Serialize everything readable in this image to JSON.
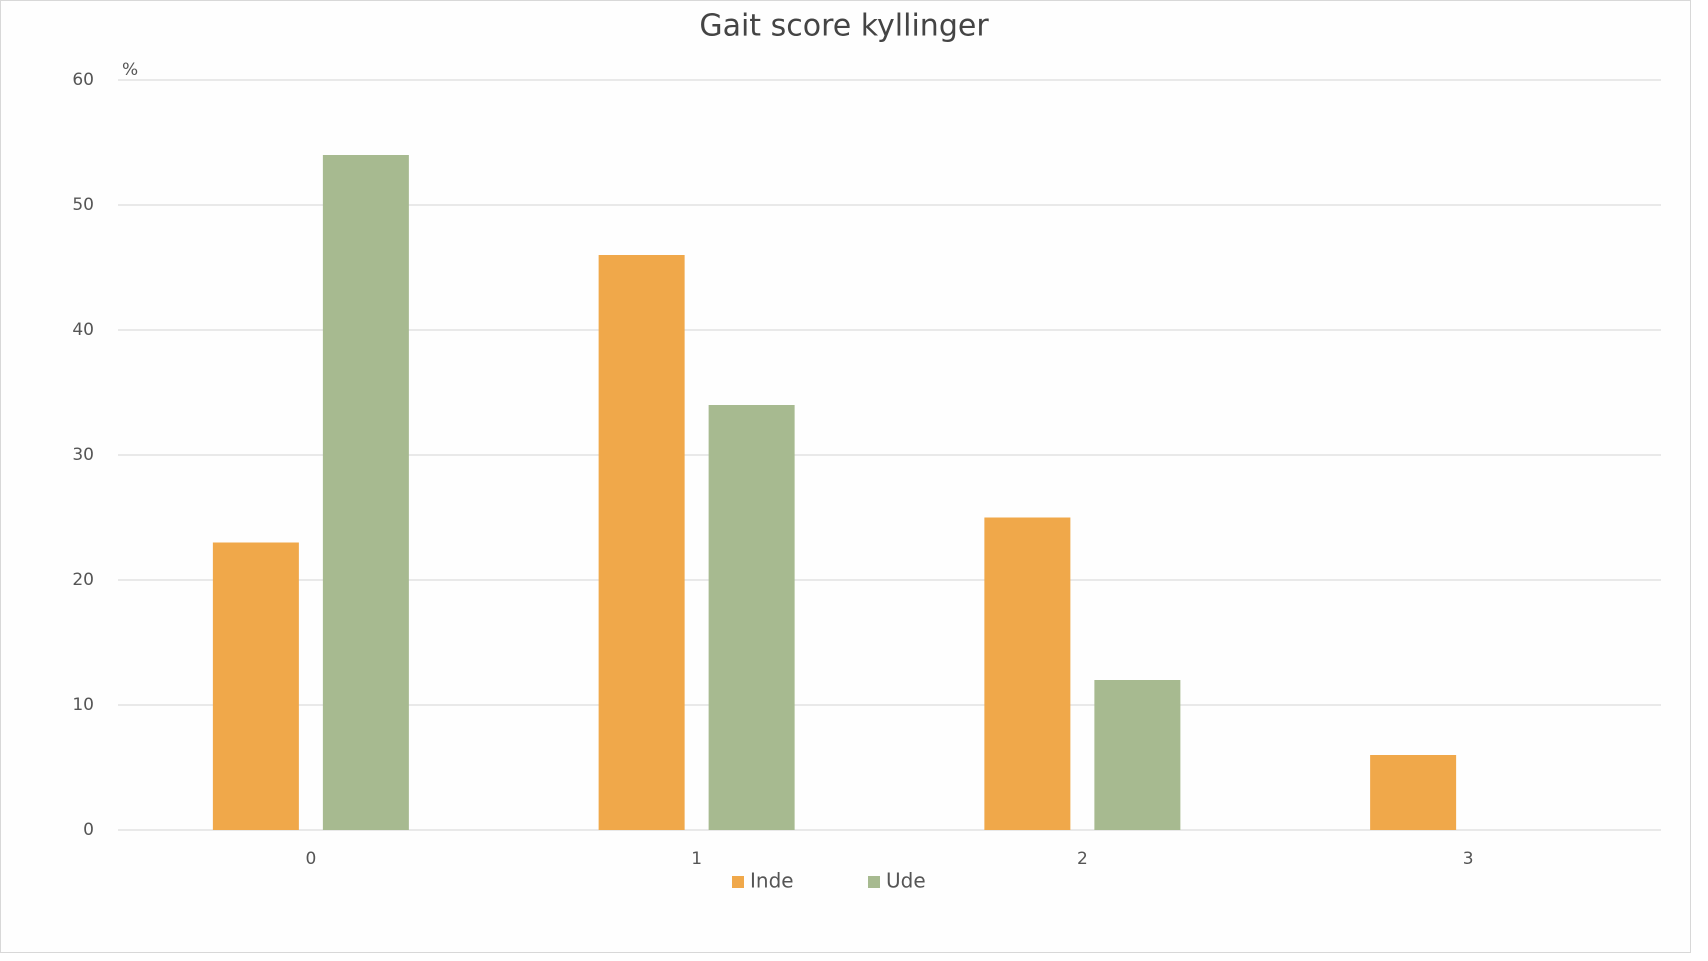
{
  "chart_data": {
    "type": "bar",
    "title": "Gait score kyllinger",
    "y_label": "%",
    "categories": [
      "0",
      "1",
      "2",
      "3"
    ],
    "series": [
      {
        "name": "Inde",
        "color": "#f0a84a",
        "values": [
          23,
          46,
          25,
          6
        ]
      },
      {
        "name": "Ude",
        "color": "#a7ba90",
        "values": [
          54,
          34,
          12,
          0
        ]
      }
    ],
    "ylim": [
      0,
      60
    ],
    "yticks": [
      0,
      10,
      20,
      30,
      40,
      50,
      60
    ],
    "grid": true,
    "legend": "bottom"
  }
}
